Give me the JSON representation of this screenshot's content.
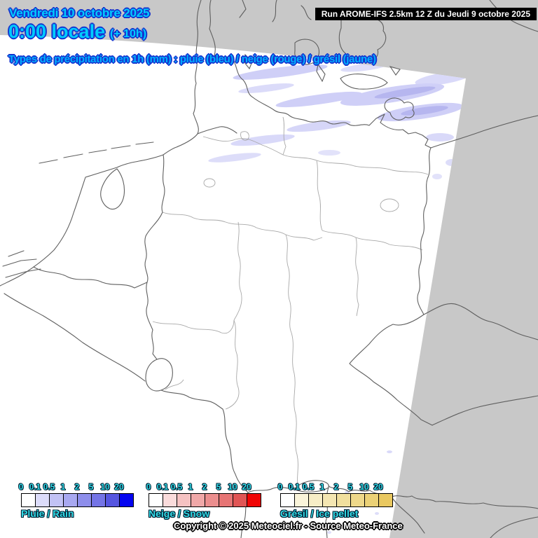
{
  "header": {
    "date_line": "Vendredi 10 octobre 2025",
    "time_line": "0:00 locale",
    "offset_label": "(+ 10h)",
    "run_label": "Run AROME-IFS 2.5km 12 Z du Jeudi 9 octobre 2025",
    "subtitle": "Types de précipitation en 1h (mm) : pluie (bleu) / neige (rouge) / grésil (jaune)"
  },
  "legends": [
    {
      "id": "rain",
      "label": "Pluie / Rain",
      "ticks": [
        "0",
        "0.1",
        "0.5",
        "1",
        "2",
        "5",
        "10",
        "20"
      ],
      "colors": [
        "#ffffff",
        "#dcdcfa",
        "#c2c2f5",
        "#a8a8f0",
        "#8e8eeb",
        "#7474e6",
        "#5555e0",
        "#0505f0"
      ]
    },
    {
      "id": "snow",
      "label": "Neige / Snow",
      "ticks": [
        "0",
        "0.1",
        "0.5",
        "1",
        "2",
        "5",
        "10",
        "20"
      ],
      "colors": [
        "#ffffff",
        "#fadcdc",
        "#f5c2c2",
        "#f0a8a8",
        "#eb8e8e",
        "#e67474",
        "#e05555",
        "#f00505"
      ]
    },
    {
      "id": "ice",
      "label": "Grésil / Ice pellet",
      "ticks": [
        "0",
        "0.1",
        "0.5",
        "1",
        "2",
        "5",
        "10",
        "20"
      ],
      "colors": [
        "#ffffff",
        "#faf4da",
        "#f7edc6",
        "#f4e6b2",
        "#f1df9e",
        "#eed88a",
        "#ebd176",
        "#e9c860"
      ]
    }
  ],
  "footer": {
    "copyright": "Copyright © 2025 Meteociel.fr - Source Meteo-France"
  },
  "colors": {
    "background_outside": "#c8c8c8",
    "domain": "#ffffff",
    "coastline": "#5f5f5f",
    "state_border": "#a8a8a8",
    "precip_light": "#cfcff7",
    "precip_medium": "#b6b6ef",
    "title_fill": "#00ccff",
    "title_outline": "#1535cf",
    "subtitle_fill": "#00b0ff",
    "legend_text": "#33dbe6",
    "legend_text_outline": "#001c30",
    "run_bg": "#000000",
    "run_text": "#ffffff",
    "copyright_fill": "#ffffff",
    "copyright_outline": "#000000",
    "swatch_border": "#000000"
  }
}
